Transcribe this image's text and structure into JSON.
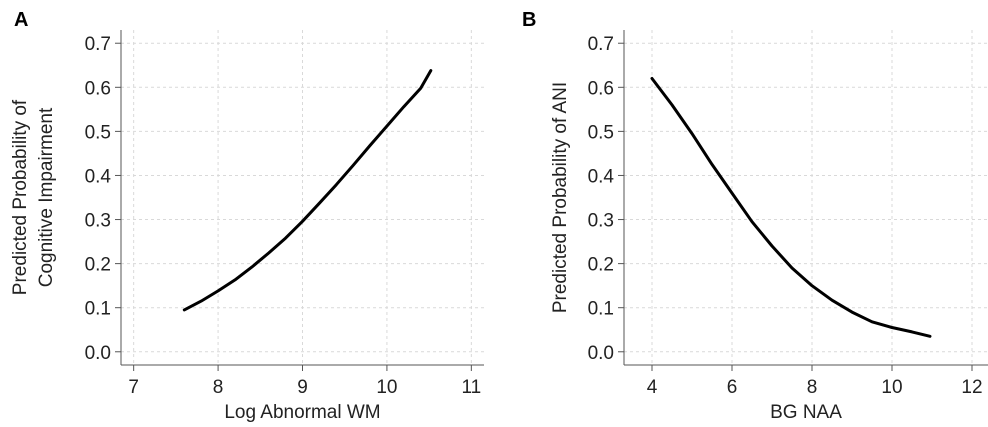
{
  "chart_data": [
    {
      "type": "line",
      "panel_label": "A",
      "title": "",
      "xlabel": "Log Abnormal WM",
      "ylabel_lines": [
        "Predicted Probability of",
        "Cognitive Impairment"
      ],
      "xlim": [
        6.85,
        11.15
      ],
      "ylim": [
        -0.03,
        0.73
      ],
      "xticks": [
        7,
        8,
        9,
        10,
        11
      ],
      "yticks": [
        0.0,
        0.1,
        0.2,
        0.3,
        0.4,
        0.5,
        0.6,
        0.7
      ],
      "ytick_labels": [
        "0.0",
        "0.1",
        "0.2",
        "0.3",
        "0.4",
        "0.5",
        "0.6",
        "0.7"
      ],
      "grid": true,
      "series": [
        {
          "color": "#000000",
          "x": [
            7.6,
            7.8,
            8.0,
            8.2,
            8.4,
            8.6,
            8.8,
            9.0,
            9.2,
            9.4,
            9.6,
            9.8,
            10.0,
            10.2,
            10.4,
            10.52
          ],
          "y": [
            0.095,
            0.115,
            0.138,
            0.163,
            0.192,
            0.224,
            0.258,
            0.296,
            0.337,
            0.379,
            0.423,
            0.468,
            0.512,
            0.556,
            0.598,
            0.638
          ]
        }
      ]
    },
    {
      "type": "line",
      "panel_label": "B",
      "title": "",
      "xlabel": "BG NAA",
      "ylabel_lines": [
        "Predicted Probability of ANI"
      ],
      "xlim": [
        3.3,
        12.4
      ],
      "ylim": [
        -0.03,
        0.73
      ],
      "xticks": [
        4,
        6,
        8,
        10,
        12
      ],
      "yticks": [
        0.0,
        0.1,
        0.2,
        0.3,
        0.4,
        0.5,
        0.6,
        0.7
      ],
      "ytick_labels": [
        "0.0",
        "0.1",
        "0.2",
        "0.3",
        "0.4",
        "0.5",
        "0.6",
        "0.7"
      ],
      "grid": true,
      "series": [
        {
          "color": "#000000",
          "x": [
            4.0,
            4.5,
            5.0,
            5.5,
            6.0,
            6.5,
            7.0,
            7.5,
            8.0,
            8.5,
            9.0,
            9.5,
            10.0,
            10.5,
            10.95
          ],
          "y": [
            0.62,
            0.56,
            0.495,
            0.425,
            0.36,
            0.295,
            0.24,
            0.19,
            0.15,
            0.117,
            0.09,
            0.068,
            0.055,
            0.045,
            0.035
          ]
        }
      ]
    }
  ]
}
